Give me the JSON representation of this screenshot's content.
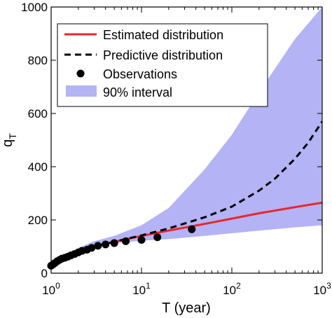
{
  "chart_data": {
    "type": "line",
    "xlabel": "T (year)",
    "ylabel": "q",
    "ylabel_subscript": "T",
    "xscale": "log",
    "xlim": [
      1,
      1000
    ],
    "ylim": [
      0,
      1000
    ],
    "grid": false,
    "legend_position": "top-left",
    "x_ticks": [
      {
        "value": 1,
        "base": "10",
        "exp": "0"
      },
      {
        "value": 10,
        "base": "10",
        "exp": "1"
      },
      {
        "value": 100,
        "base": "10",
        "exp": "2"
      },
      {
        "value": 1000,
        "base": "10",
        "exp": "3"
      }
    ],
    "y_ticks": [
      0,
      200,
      400,
      600,
      800,
      1000
    ],
    "series": [
      {
        "name": "Estimated distribution",
        "style": "solid-line",
        "color": "#e8272b",
        "x": [
          1,
          2,
          5,
          10,
          20,
          50,
          100,
          200,
          500,
          1000
        ],
        "y": [
          28,
          85,
          118,
          140,
          160,
          185,
          205,
          225,
          248,
          265
        ]
      },
      {
        "name": "Predictive distribution",
        "style": "dashed-line",
        "color": "#000000",
        "x": [
          1,
          2,
          5,
          10,
          20,
          50,
          100,
          200,
          300,
          500,
          700,
          1000
        ],
        "y": [
          28,
          85,
          118,
          142,
          168,
          210,
          250,
          310,
          355,
          430,
          490,
          570
        ]
      },
      {
        "name": "Observations",
        "style": "markers",
        "color": "#000000",
        "x": [
          1.0,
          1.05,
          1.1,
          1.17,
          1.24,
          1.32,
          1.42,
          1.53,
          1.66,
          1.82,
          2.0,
          2.2,
          2.5,
          2.8,
          3.3,
          4.0,
          5.0,
          6.7,
          10.0,
          15.0,
          36.0
        ],
        "y": [
          28,
          33,
          38,
          45,
          50,
          55,
          58,
          62,
          67,
          72,
          78,
          84,
          88,
          95,
          103,
          108,
          113,
          120,
          125,
          135,
          165
        ]
      },
      {
        "name": "90% interval",
        "style": "band",
        "color": "#b3b3f5",
        "x": [
          1,
          2,
          3,
          5,
          10,
          20,
          50,
          100,
          200,
          500,
          1000
        ],
        "lower": [
          25,
          75,
          100,
          112,
          122,
          128,
          140,
          150,
          160,
          172,
          180
        ],
        "upper": [
          32,
          95,
          120,
          140,
          180,
          245,
          390,
          520,
          680,
          880,
          1000
        ]
      }
    ]
  }
}
